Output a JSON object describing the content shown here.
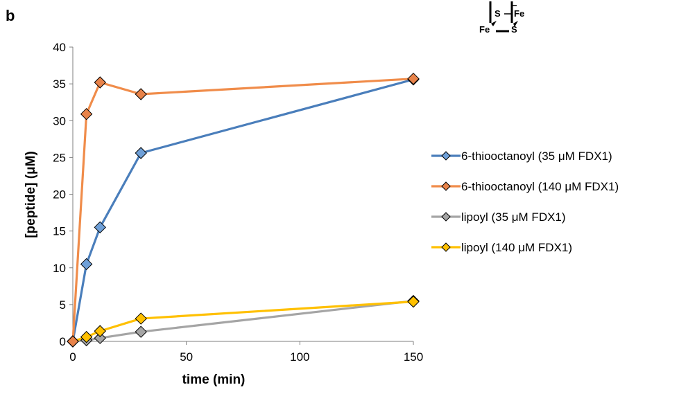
{
  "panel_label": "b",
  "structure_labels": [
    "S",
    "Fe",
    "Fe",
    "S"
  ],
  "chart_data": {
    "type": "line",
    "xlabel": "time (min)",
    "ylabel": "[peptide] (μM)",
    "xlim": [
      0,
      150
    ],
    "ylim": [
      0,
      40
    ],
    "xticks": [
      0,
      50,
      100,
      150
    ],
    "yticks": [
      0,
      5,
      10,
      15,
      20,
      25,
      30,
      35,
      40
    ],
    "grid": false,
    "legend_position": "right",
    "marker": "diamond",
    "series": [
      {
        "name": "6-thiooctanoyl (35 μM FDX1)",
        "color": "#4a7ebb",
        "fill": "#6fa0d8",
        "x": [
          0,
          6,
          12,
          30,
          150
        ],
        "y": [
          0,
          10.5,
          15.5,
          25.6,
          35.6
        ]
      },
      {
        "name": "6-thiooctanoyl (140 μM FDX1)",
        "color": "#f08c4a",
        "fill": "#e8834a",
        "x": [
          0,
          6,
          12,
          30,
          150
        ],
        "y": [
          0,
          30.9,
          35.2,
          33.6,
          35.7
        ]
      },
      {
        "name": "lipoyl (35 μM FDX1)",
        "color": "#a5a5a5",
        "fill": "#a5a5a5",
        "x": [
          0,
          6,
          12,
          30,
          150
        ],
        "y": [
          0,
          0.15,
          0.45,
          1.3,
          5.5
        ]
      },
      {
        "name": "lipoyl (140 μM FDX1)",
        "color": "#ffc000",
        "fill": "#ffc000",
        "x": [
          0,
          6,
          12,
          30,
          150
        ],
        "y": [
          0,
          0.6,
          1.4,
          3.1,
          5.4
        ]
      }
    ]
  }
}
